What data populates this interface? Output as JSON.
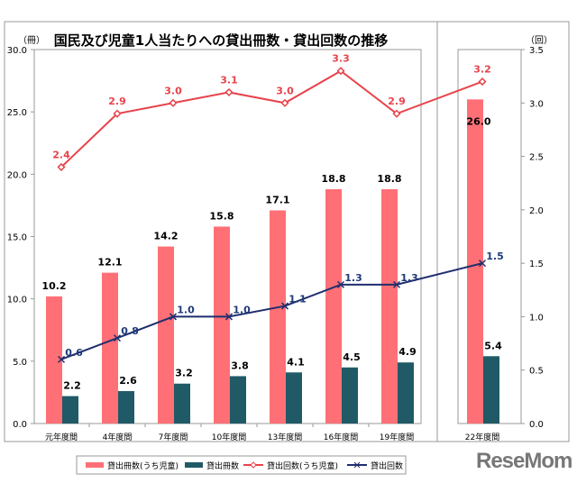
{
  "chart_data": {
    "type": "bar+line",
    "title": "国民及び児童1人当たりへの貸出冊数・貸出回数の推移",
    "left_unit": "（冊）",
    "right_unit": "（回）",
    "categories": [
      "元年度間",
      "4年度間",
      "7年度間",
      "10年度間",
      "13年度間",
      "16年度間",
      "19年度間",
      "22年度間"
    ],
    "left_ylim": [
      0,
      30
    ],
    "left_ticks": [
      "0.0",
      "5.0",
      "10.0",
      "15.0",
      "20.0",
      "25.0",
      "30.0"
    ],
    "right_ylim": [
      0,
      3.5
    ],
    "right_ticks": [
      "0.0",
      "0.5",
      "1.0",
      "1.5",
      "2.0",
      "2.5",
      "3.0",
      "3.5"
    ],
    "grid": false,
    "legend_placement": "bottom",
    "series": [
      {
        "name": "貸出冊数(うち児童)",
        "type": "bar",
        "axis": "left",
        "color": "#FF7076",
        "values": [
          10.2,
          12.1,
          14.2,
          15.8,
          17.1,
          18.8,
          18.8,
          26.0
        ],
        "labels": [
          "10.2",
          "12.1",
          "14.2",
          "15.8",
          "17.1",
          "18.8",
          "18.8",
          "26.0"
        ]
      },
      {
        "name": "貸出冊数",
        "type": "bar",
        "axis": "left",
        "color": "#1F5A66",
        "values": [
          2.2,
          2.6,
          3.2,
          3.8,
          4.1,
          4.5,
          4.9,
          5.4
        ],
        "labels": [
          "2.2",
          "2.6",
          "3.2",
          "3.8",
          "4.1",
          "4.5",
          "4.9",
          "5.4"
        ]
      },
      {
        "name": "貸出回数(うち児童)",
        "type": "line",
        "axis": "right",
        "color": "#E8434B",
        "marker": "diamond",
        "values": [
          2.4,
          2.9,
          3.0,
          3.1,
          3.0,
          3.3,
          2.9,
          3.2
        ],
        "labels": [
          "2.4",
          "2.9",
          "3.0",
          "3.1",
          "3.0",
          "3.3",
          "2.9",
          "3.2"
        ]
      },
      {
        "name": "貸出回数",
        "type": "line",
        "axis": "right",
        "color": "#1F2E6E",
        "marker": "x",
        "values": [
          0.6,
          0.8,
          1.0,
          1.0,
          1.1,
          1.3,
          1.3,
          1.5
        ],
        "labels": [
          "0.6",
          "0.8",
          "1.0",
          "1.0",
          "1.1",
          "1.3",
          "1.3",
          "1.5"
        ]
      }
    ]
  },
  "logo": "ReseMom"
}
